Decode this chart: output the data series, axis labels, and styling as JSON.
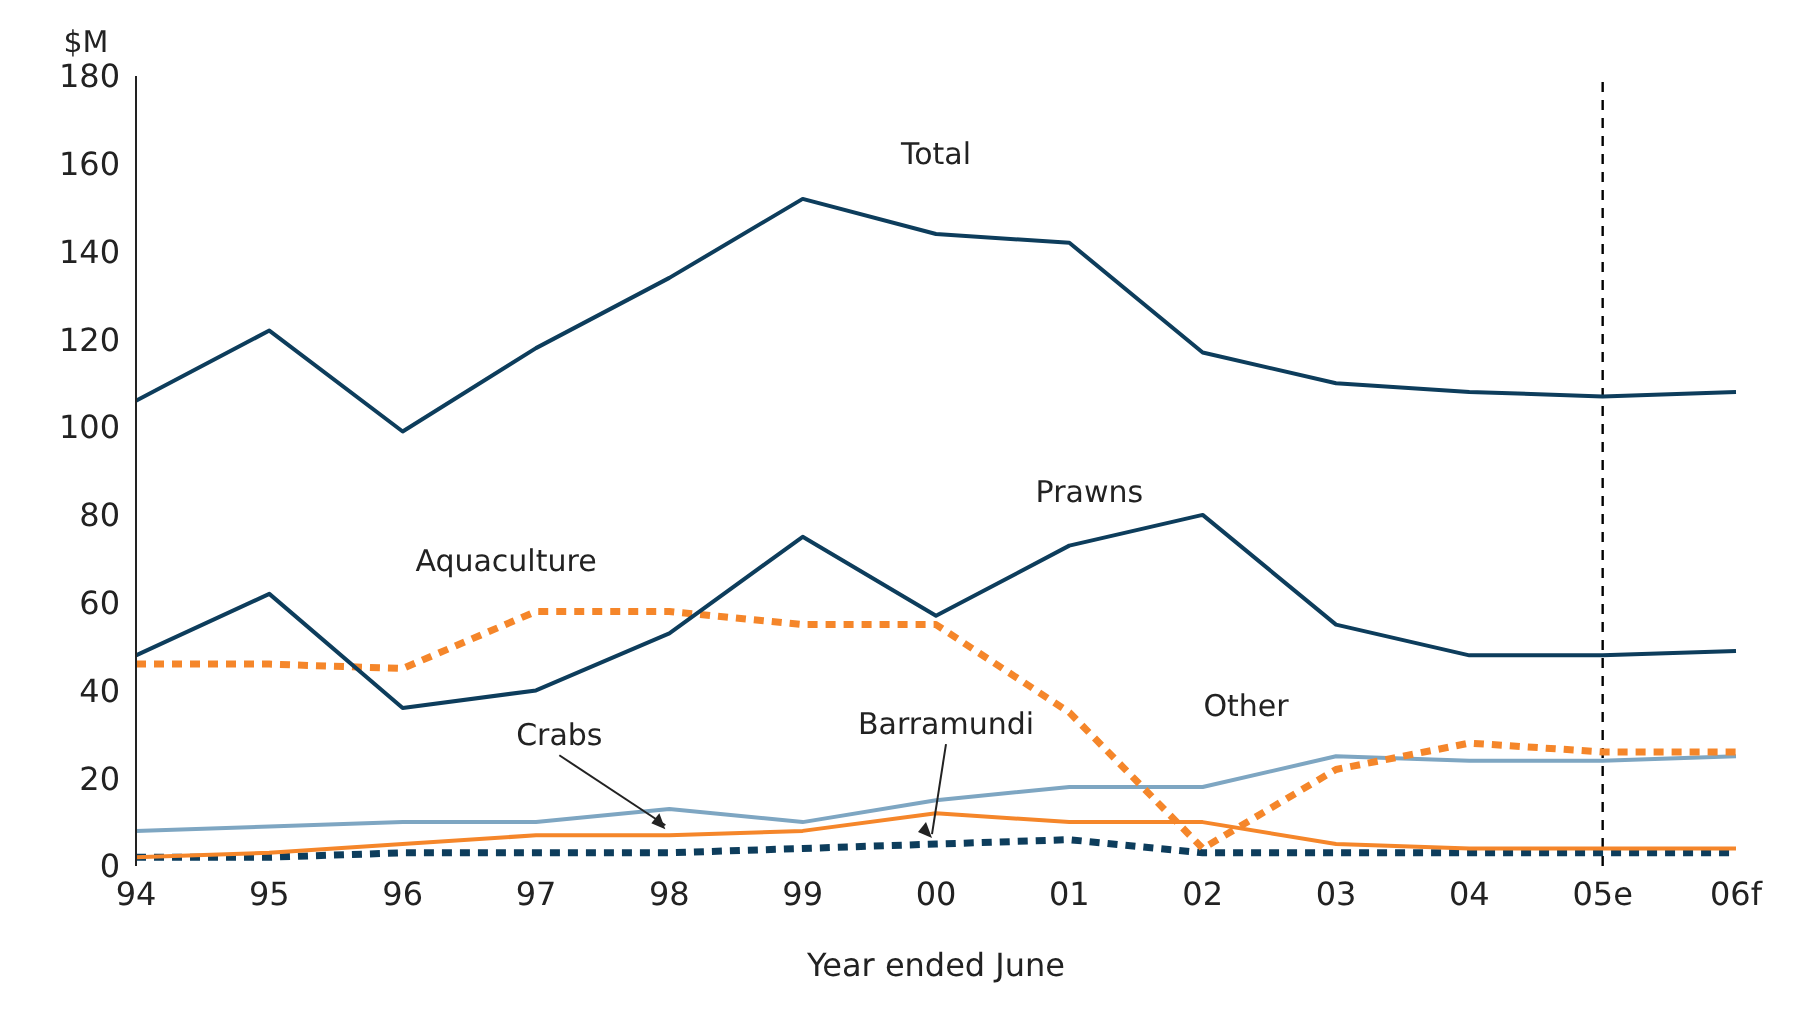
{
  "chart_data": {
    "type": "line",
    "xlabel": "Year ended June",
    "ylabel": "$M",
    "categories": [
      "94",
      "95",
      "96",
      "97",
      "98",
      "99",
      "00",
      "01",
      "02",
      "03",
      "04",
      "05e",
      "06f"
    ],
    "series": [
      {
        "name": "Total",
        "color": "#0d3d5c",
        "values": [
          106,
          122,
          99,
          118,
          134,
          152,
          144,
          142,
          117,
          110,
          108,
          107,
          108
        ]
      },
      {
        "name": "Prawns",
        "color": "#0d3d5c",
        "values": [
          48,
          62,
          36,
          40,
          53,
          75,
          57,
          73,
          80,
          55,
          48,
          48,
          49
        ]
      },
      {
        "name": "Aquaculture",
        "color": "#f5862a",
        "line_style": "dashed",
        "values": [
          46,
          46,
          45,
          58,
          58,
          55,
          55,
          35,
          4,
          22,
          28,
          26,
          26
        ]
      },
      {
        "name": "Other",
        "color": "#7ea6c2",
        "values": [
          8,
          9,
          10,
          10,
          13,
          10,
          15,
          18,
          18,
          25,
          24,
          24,
          25
        ]
      },
      {
        "name": "Crabs",
        "color": "#f5862a",
        "values": [
          2,
          3,
          5,
          7,
          7,
          8,
          12,
          10,
          10,
          5,
          4,
          4,
          4
        ]
      },
      {
        "name": "Barramundi",
        "color": "#0d3d5c",
        "line_style": "dashed",
        "values": [
          2,
          2,
          3,
          3,
          3,
          4,
          5,
          6,
          3,
          3,
          3,
          3,
          3
        ]
      }
    ],
    "ylim": [
      0,
      180
    ],
    "yticks": [
      0,
      20,
      40,
      60,
      80,
      100,
      120,
      140,
      160,
      180
    ],
    "grid": false,
    "legend": false,
    "marker": "none",
    "ref_lines": [
      {
        "axis": "x",
        "value": "05e",
        "line_style": "dashed",
        "color": "#000000"
      }
    ]
  }
}
